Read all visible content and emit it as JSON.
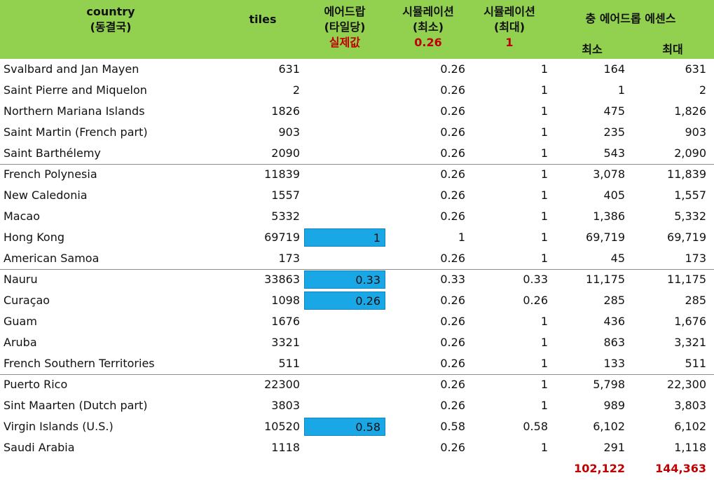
{
  "header": {
    "country": "country",
    "country_sub": "(동결국)",
    "tiles": "tiles",
    "drop": "에어드랍",
    "drop_sub": "(타일당)",
    "drop_note": "실제값",
    "sim_min": "시뮬레이션",
    "sim_min_sub": "(최소)",
    "sim_min_value": "0.26",
    "sim_max": "시뮬레이션",
    "sim_max_sub": "(최대)",
    "sim_max_value": "1",
    "total_title": "충 에어드롭 에센스",
    "total_min": "최소",
    "total_max": "최대"
  },
  "colors": {
    "header_bg": "#92d050",
    "highlight": "#1aa7e5",
    "accent_red": "#c00000"
  },
  "rows": [
    {
      "country": "Svalbard and Jan Mayen",
      "tiles": "631",
      "drop": "",
      "sim_min": "0.26",
      "sim_max": "1",
      "ess_min": "164",
      "ess_max": "631"
    },
    {
      "country": "Saint Pierre and Miquelon",
      "tiles": "2",
      "drop": "",
      "sim_min": "0.26",
      "sim_max": "1",
      "ess_min": "1",
      "ess_max": "2"
    },
    {
      "country": "Northern Mariana Islands",
      "tiles": "1826",
      "drop": "",
      "sim_min": "0.26",
      "sim_max": "1",
      "ess_min": "475",
      "ess_max": "1,826"
    },
    {
      "country": "Saint Martin (French part)",
      "tiles": "903",
      "drop": "",
      "sim_min": "0.26",
      "sim_max": "1",
      "ess_min": "235",
      "ess_max": "903"
    },
    {
      "country": "Saint Barthélemy",
      "tiles": "2090",
      "drop": "",
      "sim_min": "0.26",
      "sim_max": "1",
      "ess_min": "543",
      "ess_max": "2,090"
    },
    {
      "country": "French Polynesia",
      "tiles": "11839",
      "drop": "",
      "sim_min": "0.26",
      "sim_max": "1",
      "ess_min": "3,078",
      "ess_max": "11,839"
    },
    {
      "country": "New Caledonia",
      "tiles": "1557",
      "drop": "",
      "sim_min": "0.26",
      "sim_max": "1",
      "ess_min": "405",
      "ess_max": "1,557"
    },
    {
      "country": "Macao",
      "tiles": "5332",
      "drop": "",
      "sim_min": "0.26",
      "sim_max": "1",
      "ess_min": "1,386",
      "ess_max": "5,332"
    },
    {
      "country": "Hong Kong",
      "tiles": "69719",
      "drop": "1",
      "sim_min": "1",
      "sim_max": "1",
      "ess_min": "69,719",
      "ess_max": "69,719"
    },
    {
      "country": "American Samoa",
      "tiles": "173",
      "drop": "",
      "sim_min": "0.26",
      "sim_max": "1",
      "ess_min": "45",
      "ess_max": "173"
    },
    {
      "country": "Nauru",
      "tiles": "33863",
      "drop": "0.33",
      "sim_min": "0.33",
      "sim_max": "0.33",
      "ess_min": "11,175",
      "ess_max": "11,175"
    },
    {
      "country": "Curaçao",
      "tiles": "1098",
      "drop": "0.26",
      "sim_min": "0.26",
      "sim_max": "0.26",
      "ess_min": "285",
      "ess_max": "285"
    },
    {
      "country": "Guam",
      "tiles": "1676",
      "drop": "",
      "sim_min": "0.26",
      "sim_max": "1",
      "ess_min": "436",
      "ess_max": "1,676"
    },
    {
      "country": "Aruba",
      "tiles": "3321",
      "drop": "",
      "sim_min": "0.26",
      "sim_max": "1",
      "ess_min": "863",
      "ess_max": "3,321"
    },
    {
      "country": "French Southern Territories",
      "tiles": "511",
      "drop": "",
      "sim_min": "0.26",
      "sim_max": "1",
      "ess_min": "133",
      "ess_max": "511"
    },
    {
      "country": "Puerto Rico",
      "tiles": "22300",
      "drop": "",
      "sim_min": "0.26",
      "sim_max": "1",
      "ess_min": "5,798",
      "ess_max": "22,300"
    },
    {
      "country": "Sint Maarten (Dutch part)",
      "tiles": "3803",
      "drop": "",
      "sim_min": "0.26",
      "sim_max": "1",
      "ess_min": "989",
      "ess_max": "3,803"
    },
    {
      "country": "Virgin Islands (U.S.)",
      "tiles": "10520",
      "drop": "0.58",
      "sim_min": "0.58",
      "sim_max": "0.58",
      "ess_min": "6,102",
      "ess_max": "6,102"
    },
    {
      "country": "Saudi Arabia",
      "tiles": "1118",
      "drop": "",
      "sim_min": "0.26",
      "sim_max": "1",
      "ess_min": "291",
      "ess_max": "1,118"
    }
  ],
  "totals": {
    "min": "102,122",
    "max": "144,363"
  }
}
